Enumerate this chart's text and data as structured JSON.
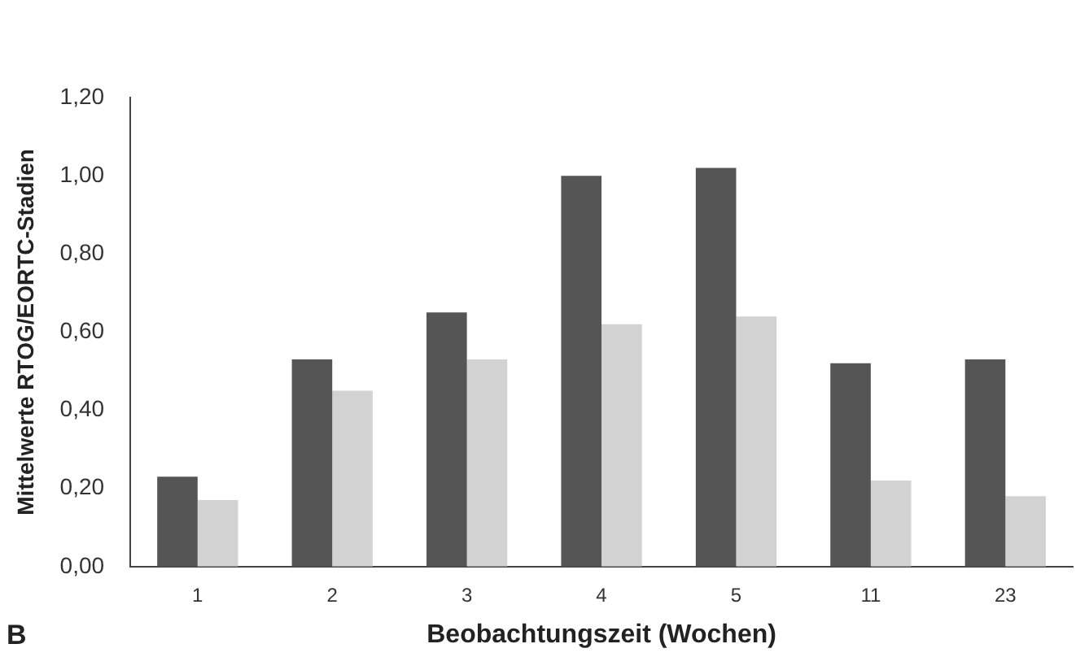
{
  "chart_data": {
    "type": "bar",
    "xlabel": "Beobachtungszeit (Wochen)",
    "ylabel": "Mittelwerte RTOG/EORTC-Stadien",
    "annotations": [
      "B"
    ],
    "categories": [
      "1",
      "2",
      "3",
      "4",
      "5",
      "11",
      "23"
    ],
    "series": [
      {
        "color": "#555555",
        "values": [
          0.23,
          0.53,
          0.65,
          1.0,
          1.02,
          0.52,
          0.53
        ]
      },
      {
        "color": "#d2d2d2",
        "values": [
          0.17,
          0.45,
          0.53,
          0.62,
          0.64,
          0.22,
          0.18
        ]
      }
    ],
    "ylim": [
      0,
      1.2
    ],
    "yticks": [
      {
        "value": 0,
        "label": "0,00"
      },
      {
        "value": 0.2,
        "label": "0,20"
      },
      {
        "value": 0.4,
        "label": "0,40"
      },
      {
        "value": 0.6,
        "label": "0,60"
      },
      {
        "value": 0.8,
        "label": "0,80"
      },
      {
        "value": 1.0,
        "label": "1,00"
      },
      {
        "value": 1.2,
        "label": "1,20"
      }
    ],
    "grid": false,
    "legend": false
  }
}
